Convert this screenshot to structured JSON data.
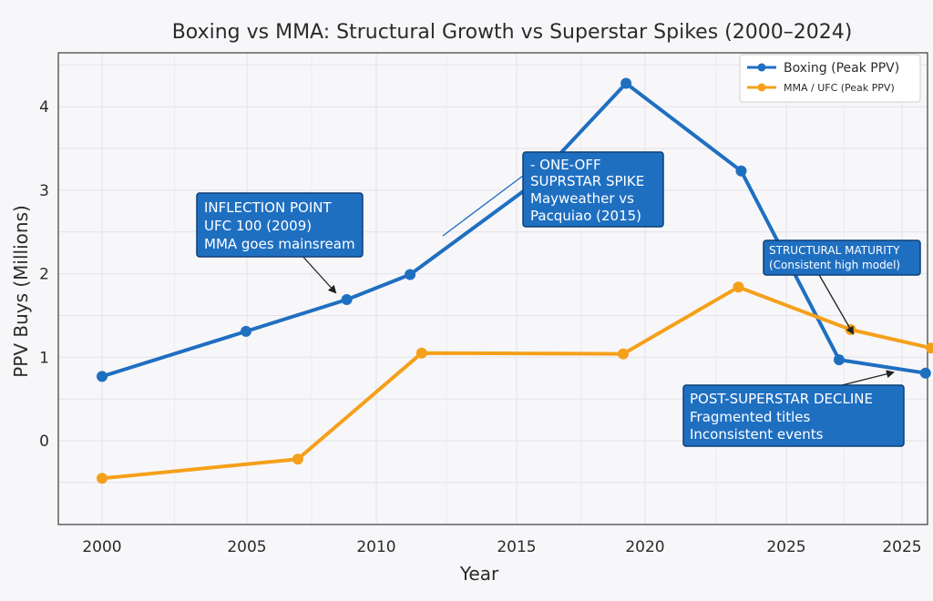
{
  "chart_data": {
    "type": "line",
    "title": "Boxing vs MMA: Structural Growth vs Superstar Spikes (2000–2024)",
    "xlabel": "Year",
    "ylabel": "PPV Buys (Millions)",
    "x_ticks": [
      "2000",
      "2005",
      "2010",
      "2015",
      "2020",
      "2025",
      "2025"
    ],
    "y_ticks": [
      "0",
      "1",
      "2",
      "3",
      "4"
    ],
    "ylim": [
      -0.9,
      4.7
    ],
    "grid": true,
    "legend_position": "top-right",
    "series": [
      {
        "name": "Boxing (Peak PPV)",
        "color": "#1f6fc1",
        "points": [
          {
            "x": 2000,
            "y": 0.77
          },
          {
            "x": 2005,
            "y": 1.31
          },
          {
            "x": 2008.5,
            "y": 1.69
          },
          {
            "x": 2010.7,
            "y": 1.99
          },
          {
            "x": 2014.8,
            "y": 3.03
          },
          {
            "x": 2018.2,
            "y": 4.28
          },
          {
            "x": 2022.2,
            "y": 3.23
          },
          {
            "x": 2025.6,
            "y": 0.97
          },
          {
            "x": 2028.6,
            "y": 0.81
          }
        ]
      },
      {
        "name": "MMA / UFC (Peak PPV)",
        "color": "#f5a01a",
        "points": [
          {
            "x": 2000,
            "y": -0.45
          },
          {
            "x": 2006.8,
            "y": -0.22
          },
          {
            "x": 2011.1,
            "y": 1.05
          },
          {
            "x": 2018.1,
            "y": 1.04
          },
          {
            "x": 2022.1,
            "y": 1.84
          },
          {
            "x": 2026.0,
            "y": 1.33
          },
          {
            "x": 2028.8,
            "y": 1.11
          }
        ]
      }
    ],
    "annotations": [
      {
        "lines": [
          "INFLECTION POINT",
          "UFC 100 (2009)",
          "MMA goes mainsream"
        ]
      },
      {
        "lines": [
          "- ONE-OFF",
          "SUPRSTAR SPIKE",
          "Mayweather vs",
          "Pacquiao (2015)"
        ]
      },
      {
        "lines": [
          "STRUCTURAL MATURITY",
          "(Consistent high model)"
        ]
      },
      {
        "lines": [
          "POST-SUPERSTAR DECLINE",
          "Fragmented titles",
          "Inconsistent events"
        ]
      }
    ]
  }
}
